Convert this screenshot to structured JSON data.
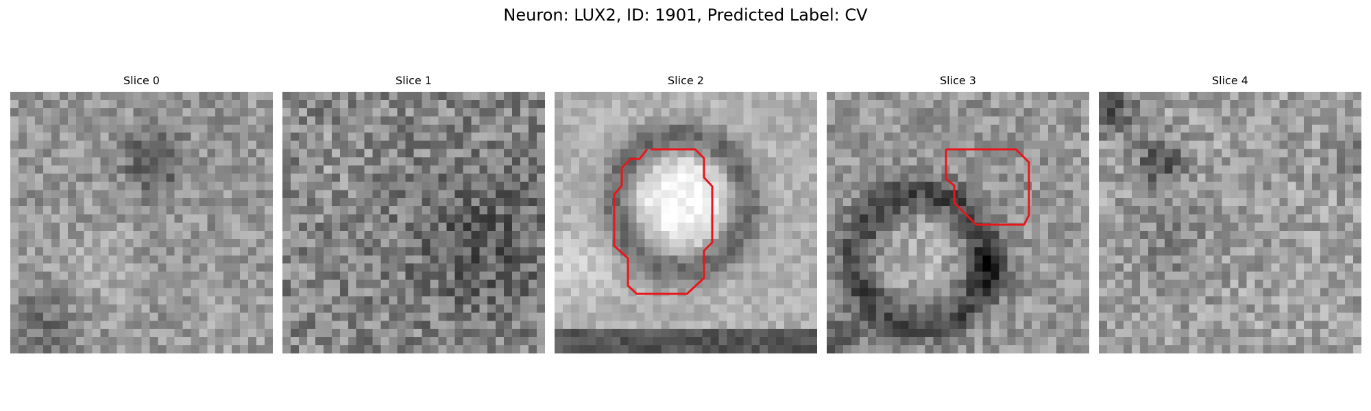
{
  "figure": {
    "title": "Neuron: LUX2, ID: 1901, Predicted Label: CV"
  },
  "overlay_color": "#e8161b",
  "colormap": "gray",
  "slices": [
    {
      "label": "Slice 0"
    },
    {
      "label": "Slice 1"
    },
    {
      "label": "Slice 2"
    },
    {
      "label": "Slice 3"
    },
    {
      "label": "Slice 4"
    }
  ]
}
